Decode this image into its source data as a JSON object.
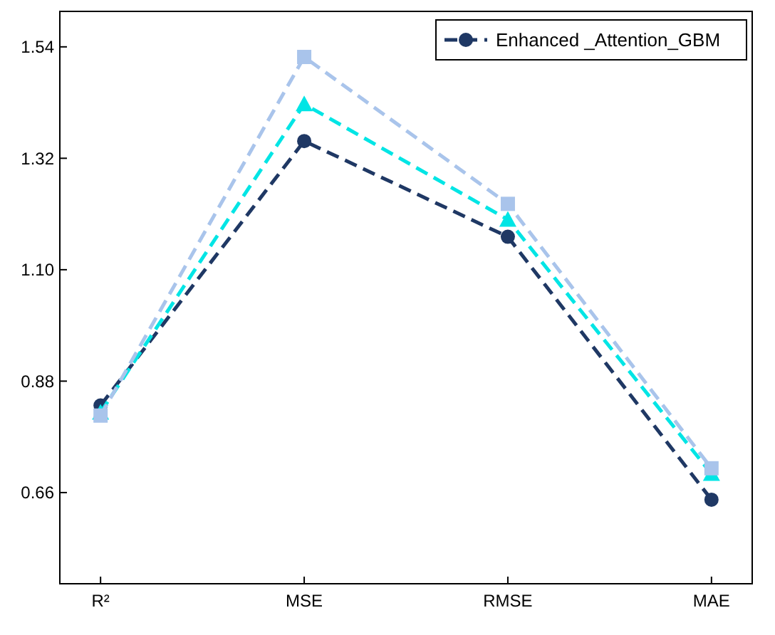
{
  "chart_data": {
    "type": "line",
    "categories": [
      "R²",
      "MSE",
      "RMSE",
      "MAE"
    ],
    "ylim": [
      0.48,
      1.61
    ],
    "yticks": [
      0.66,
      0.88,
      {
        "value": 1.1,
        "label": "1.10"
      },
      1.32,
      1.54
    ],
    "series": [
      {
        "name": "Enhanced _Attention_GBM",
        "color": "#1f3864",
        "marker": "circle",
        "values": [
          0.832,
          1.354,
          1.165,
          0.646
        ]
      },
      {
        "color": "#00e5e5",
        "marker": "triangle",
        "values": [
          0.818,
          1.427,
          1.199,
          0.697
        ]
      },
      {
        "color": "#a9c4eb",
        "marker": "square",
        "values": [
          0.812,
          1.52,
          1.23,
          0.708
        ]
      }
    ],
    "line_style": "dashed",
    "legend": "top right",
    "grid": false
  }
}
